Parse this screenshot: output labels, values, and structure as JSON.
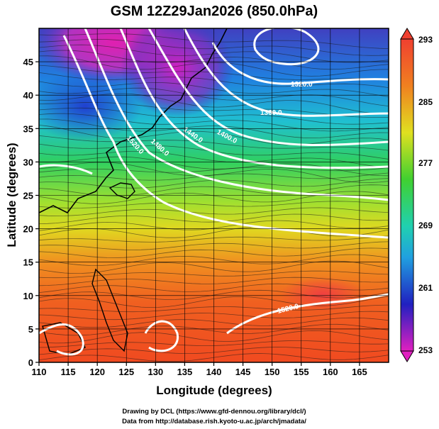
{
  "title": "GSM 12Z29Jan2026 (850.0hPa)",
  "x_axis": {
    "label": "Longitude (degrees)",
    "ticks": [
      "110",
      "115",
      "120",
      "125",
      "130",
      "135",
      "140",
      "145",
      "150",
      "155",
      "160",
      "165"
    ]
  },
  "y_axis": {
    "label": "Latitude  (degrees)",
    "ticks": [
      "0",
      "5",
      "10",
      "15",
      "20",
      "25",
      "30",
      "35",
      "40",
      "45"
    ]
  },
  "colorbar": {
    "labels": [
      "293",
      "285",
      "277",
      "269",
      "261",
      "253"
    ]
  },
  "contour_labels": [
    "1320.0",
    "1360.0",
    "1400.0",
    "1440.0",
    "1480.0",
    "1520.0",
    "1520.0"
  ],
  "credits": {
    "line1": "Drawing by DCL (https://www.gfd-dennou.org/library/dcl/)",
    "line2": "Data from http://database.rish.kyoto-u.ac.jp/arch/jmadata/"
  },
  "chart_data": {
    "type": "heatmap",
    "variable": "temperature field with geopotential height contours and wind streamlines",
    "xlim": [
      110,
      170
    ],
    "ylim": [
      0,
      50
    ],
    "colorbar_range": [
      253,
      293
    ],
    "colorbar_ticks": [
      293,
      285,
      277,
      269,
      261,
      253
    ],
    "contour_levels": [
      1320,
      1360,
      1400,
      1440,
      1480,
      1520
    ],
    "colors": {
      "cold": "#e020b0",
      "cool": "#2030c0",
      "mild": "#20c0e0",
      "neutral": "#30d040",
      "warm": "#e0e020",
      "hot": "#f05020"
    }
  }
}
